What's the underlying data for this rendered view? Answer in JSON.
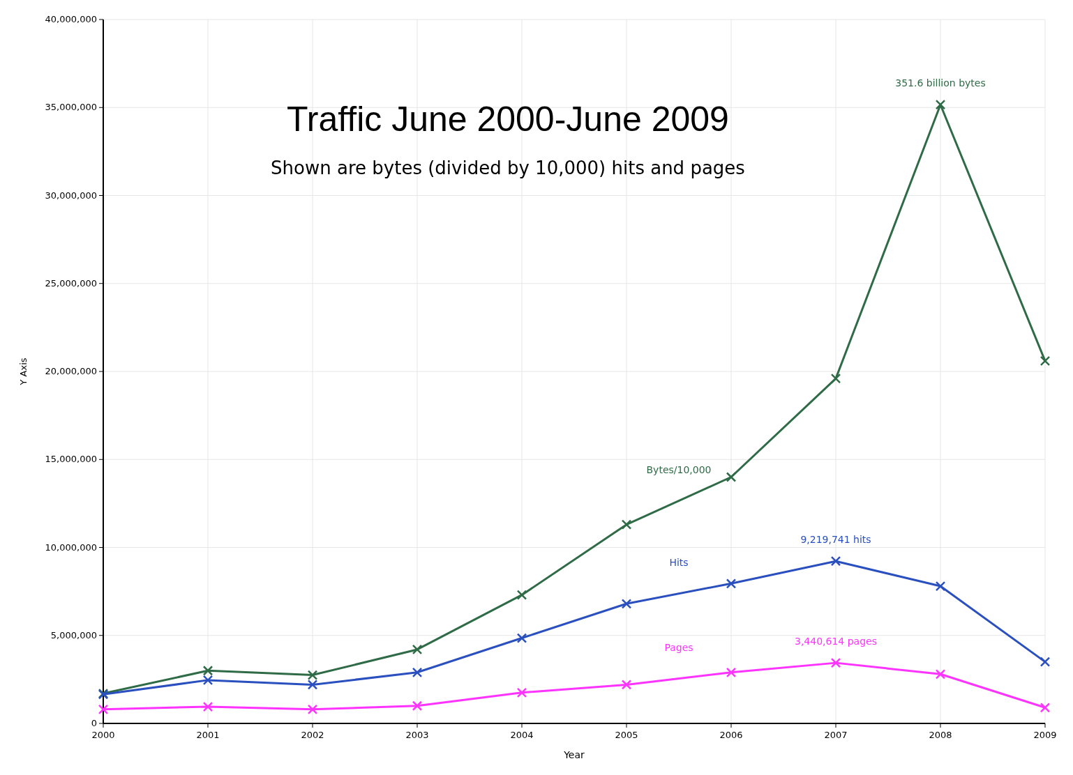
{
  "chart_data": {
    "type": "line",
    "title": "Traffic June 2000-June 2009",
    "subtitle": "Shown are bytes (divided by 10,000) hits and pages",
    "xlabel": "Year",
    "ylabel": "Y Axis",
    "x": [
      2000,
      2001,
      2002,
      2003,
      2004,
      2005,
      2006,
      2007,
      2008,
      2009
    ],
    "series": [
      {
        "name": "Bytes/10,000",
        "color": "#2e6b46",
        "values": [
          1700000,
          3000000,
          2750000,
          4200000,
          7300000,
          11300000,
          14000000,
          19600000,
          35160000,
          20600000
        ]
      },
      {
        "name": "Hits",
        "color": "#2a4fbf",
        "values": [
          1650000,
          2460000,
          2200000,
          2900000,
          4850000,
          6800000,
          7950000,
          9219741,
          7800000,
          3500000
        ]
      },
      {
        "name": "Pages",
        "color": "#ff33ff",
        "values": [
          800000,
          950000,
          800000,
          1000000,
          1750000,
          2200000,
          2900000,
          3440614,
          2800000,
          900000
        ]
      }
    ],
    "annotations": [
      "351.6 billion bytes",
      "9,219,741 hits",
      "3,440,614 pages"
    ],
    "xlim": [
      2000,
      2009
    ],
    "xticks": [
      2000,
      2001,
      2002,
      2003,
      2004,
      2005,
      2006,
      2007,
      2008,
      2009
    ],
    "ylim": [
      0,
      40000000
    ],
    "yticks": [
      {
        "value": 0,
        "label": "0"
      },
      {
        "value": 5000000,
        "label": "5,000,000"
      },
      {
        "value": 10000000,
        "label": "10,000,000"
      },
      {
        "value": 15000000,
        "label": "15,000,000"
      },
      {
        "value": 20000000,
        "label": "20,000,000"
      },
      {
        "value": 25000000,
        "label": "25,000,000"
      },
      {
        "value": 30000000,
        "label": "30,000,000"
      },
      {
        "value": 35000000,
        "label": "35,000,000"
      },
      {
        "value": 40000000,
        "label": "40,000,000"
      }
    ],
    "grid": true,
    "legend": false,
    "marker": "cross",
    "line_style": "solid"
  }
}
